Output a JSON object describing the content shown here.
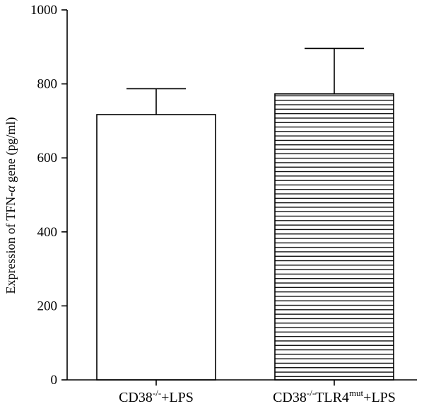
{
  "chart_data": {
    "type": "bar",
    "ylabel": {
      "pre": "Expression of TFN-",
      "italic": "α",
      "post": " gene (pg/ml)"
    },
    "ylim": [
      0,
      1000
    ],
    "yticks": [
      0,
      200,
      400,
      600,
      800,
      1000
    ],
    "categories": [
      {
        "base": "CD38",
        "sup": "-/-",
        "mid": "+LPS",
        "sup2": "",
        "tail": ""
      },
      {
        "base": "CD38",
        "sup": "-/-",
        "mid": "TLR4",
        "sup2": "mut",
        "tail": "+LPS"
      }
    ],
    "values": [
      717,
      773
    ],
    "errors": [
      70,
      123
    ],
    "fills": [
      "plain",
      "horizontal-hatch"
    ],
    "bar_color": "#ffffff",
    "line_color": "#000000",
    "grid": false
  }
}
